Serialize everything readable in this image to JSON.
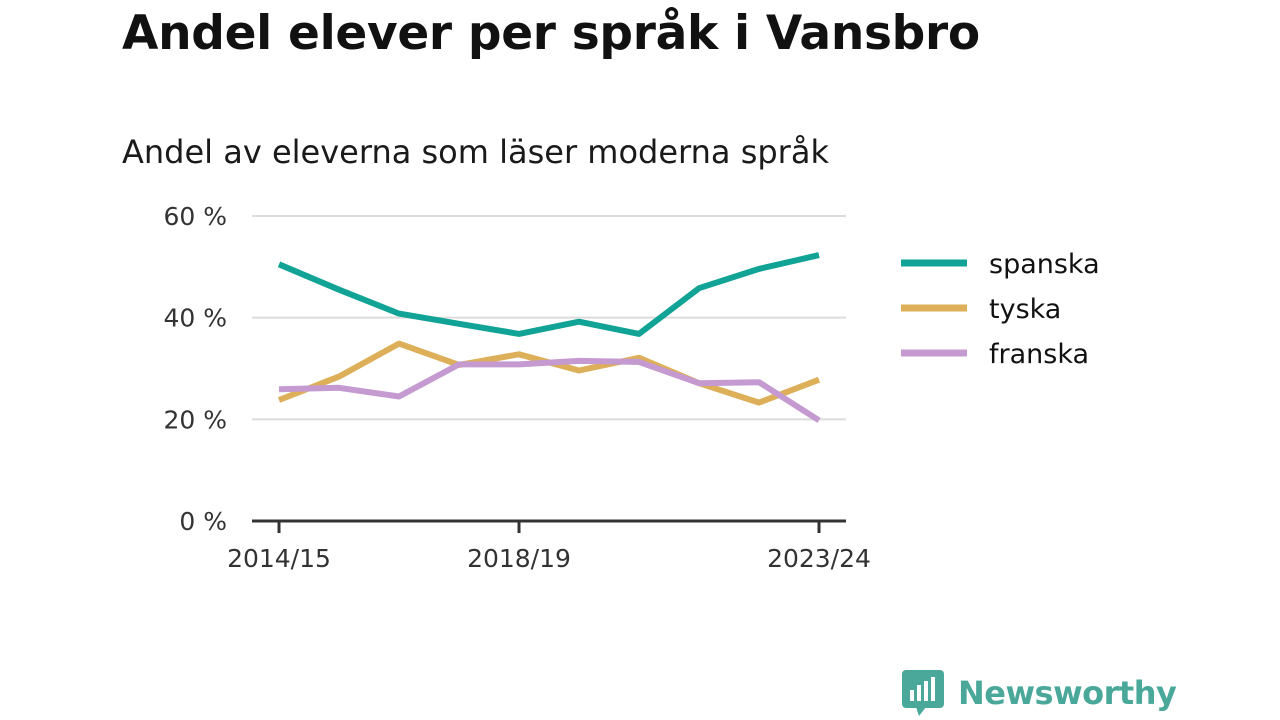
{
  "header": {
    "title": "Andel elever per språk i Vansbro",
    "subtitle": "Andel av eleverna som läser moderna språk"
  },
  "brand": {
    "name": "Newsworthy",
    "icon": "bar-chart-speech-bubble-icon",
    "color": "#4aa89a"
  },
  "chart_data": {
    "type": "line",
    "x": [
      "2014/15",
      "2015/16",
      "2016/17",
      "2017/18",
      "2018/19",
      "2019/20",
      "2020/21",
      "2021/22",
      "2022/23",
      "2023/24"
    ],
    "x_tick_labels": [
      "2014/15",
      "2018/19",
      "2023/24"
    ],
    "y_ticks": [
      0,
      20,
      40,
      60
    ],
    "y_tick_labels": [
      "0 %",
      "20 %",
      "40 %",
      "60 %"
    ],
    "ylim": [
      0,
      60
    ],
    "grid": "horizontal",
    "legend_position": "right",
    "series": [
      {
        "name": "spanska",
        "color": "#11a396",
        "values": [
          50.5,
          45.5,
          40.8,
          38.8,
          36.8,
          39.2,
          36.8,
          45.8,
          49.6,
          52.3
        ]
      },
      {
        "name": "tyska",
        "color": "#dcaf58",
        "values": [
          23.8,
          28.4,
          34.9,
          30.7,
          32.8,
          29.6,
          32.1,
          27.1,
          23.3,
          27.8
        ]
      },
      {
        "name": "franska",
        "color": "#c49ad0",
        "values": [
          25.9,
          26.2,
          24.5,
          30.8,
          30.8,
          31.5,
          31.3,
          27.1,
          27.3,
          19.8
        ]
      }
    ]
  }
}
